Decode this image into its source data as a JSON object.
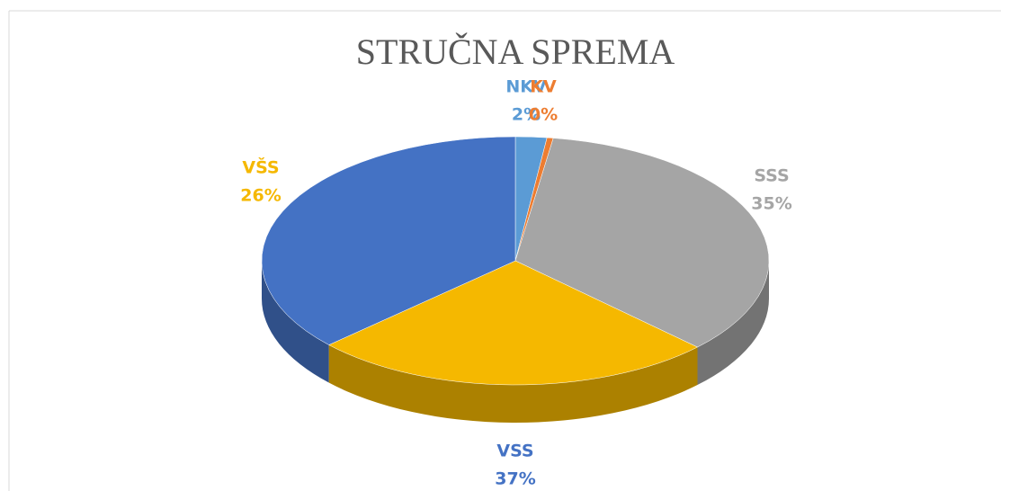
{
  "chart_data": {
    "type": "pie",
    "title": "STRUČNA SPREMA",
    "categories": [
      "NKV",
      "KV",
      "SSS",
      "VŠS",
      "VSS"
    ],
    "values": [
      2,
      0.4,
      35,
      26,
      37
    ],
    "value_labels": [
      "2%",
      "0%",
      "35%",
      "26%",
      "37%"
    ],
    "colors": [
      "#5b9bd5",
      "#ed7d31",
      "#a5a5a5",
      "#f5b800",
      "#4472c4"
    ]
  }
}
